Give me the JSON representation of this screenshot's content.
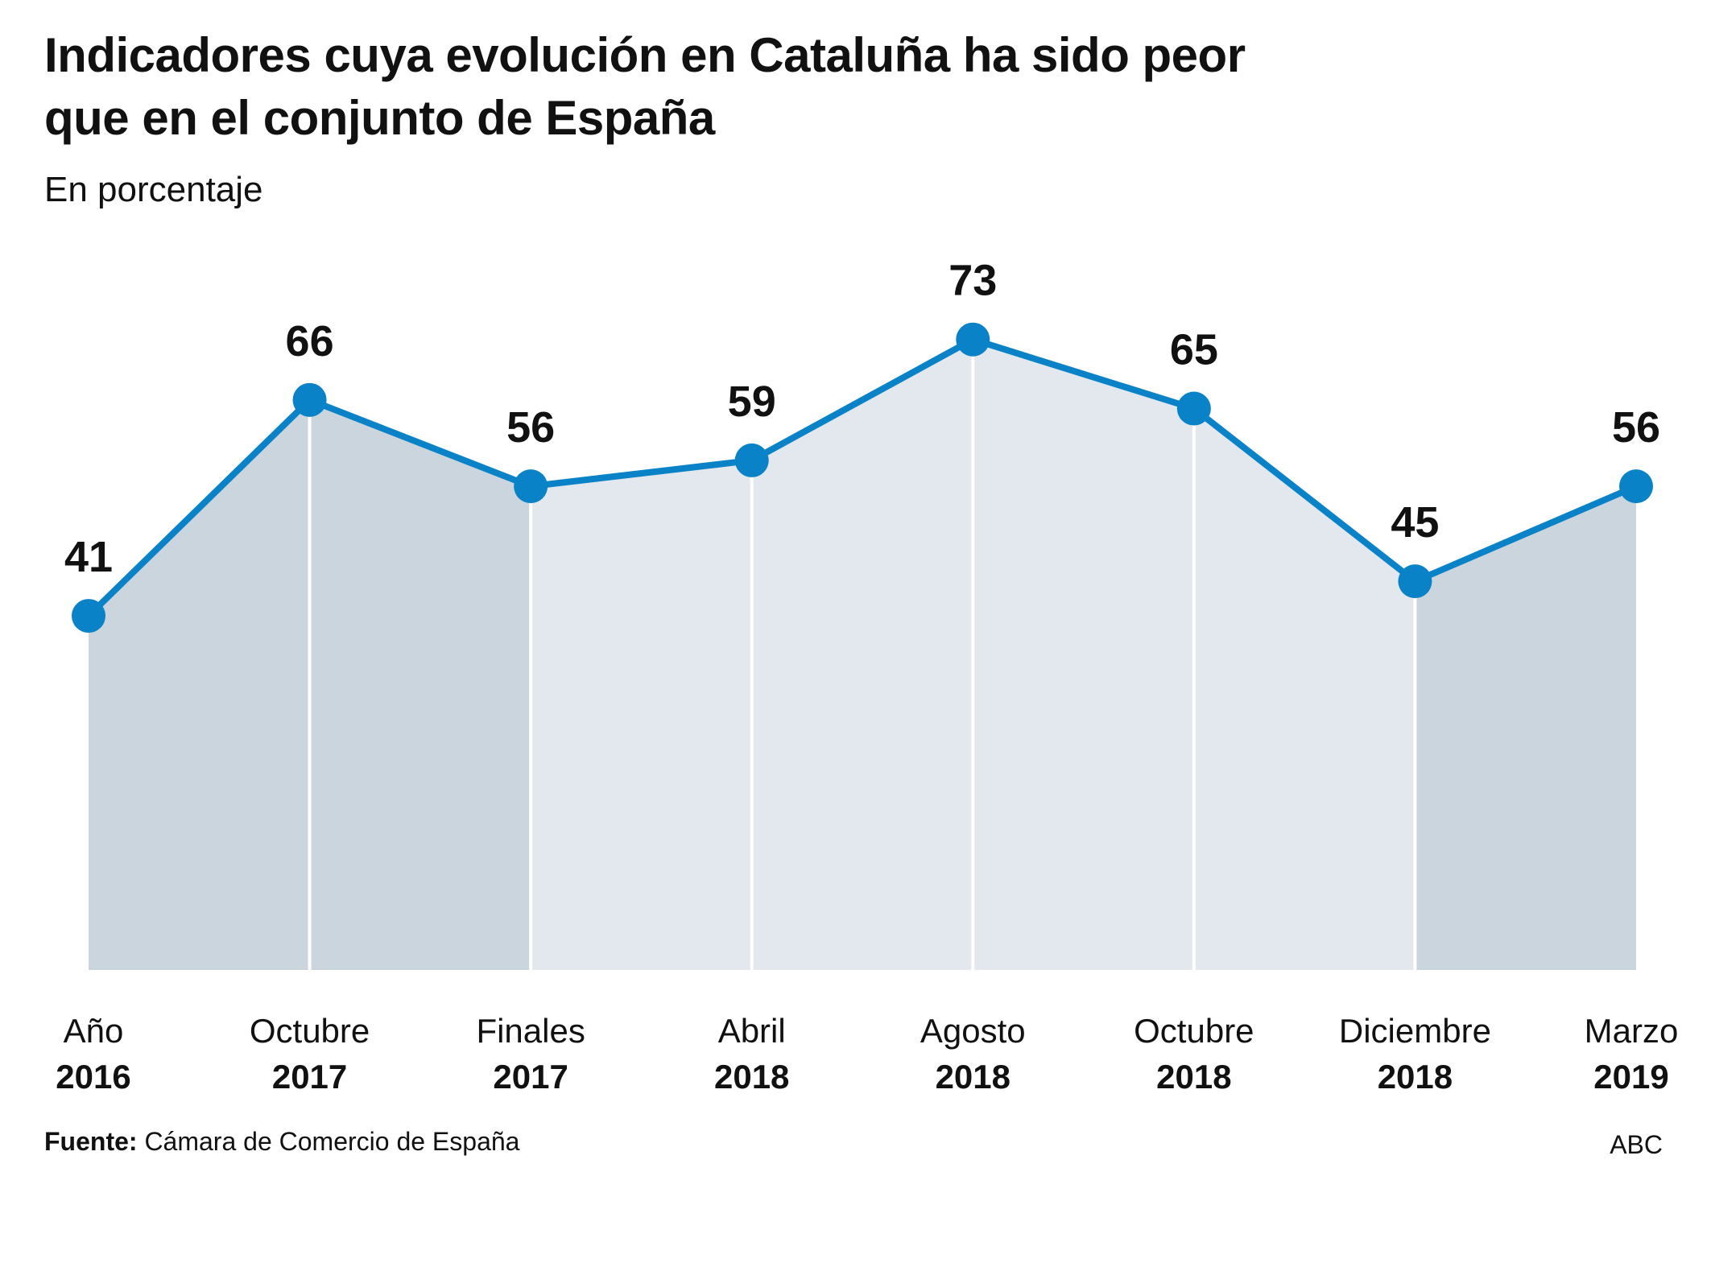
{
  "header": {
    "title_line1": "Indicadores cuya evolución en Cataluña  ha sido peor",
    "title_line2": "que en el conjunto de España",
    "subtitle": "En porcentaje"
  },
  "footer": {
    "source_label": "Fuente:",
    "source_text": "Cámara de Comercio de España",
    "brand": "ABC"
  },
  "chart_data": {
    "type": "area",
    "categories": [
      {
        "month": "Año",
        "year": "2016"
      },
      {
        "month": "Octubre",
        "year": "2017"
      },
      {
        "month": "Finales",
        "year": "2017"
      },
      {
        "month": "Abril",
        "year": "2018"
      },
      {
        "month": "Agosto",
        "year": "2018"
      },
      {
        "month": "Octubre",
        "year": "2018"
      },
      {
        "month": "Diciembre",
        "year": "2018"
      },
      {
        "month": "Marzo",
        "year": "2019"
      }
    ],
    "values": [
      41,
      66,
      56,
      59,
      73,
      65,
      45,
      56
    ],
    "ylim": [
      0,
      100
    ],
    "grid": false,
    "legend": "none",
    "colors": {
      "line": "#0a82c8",
      "band_light": "#e2e8ed",
      "band_dark": "#cbd5dd",
      "divider": "#ffffff"
    }
  }
}
